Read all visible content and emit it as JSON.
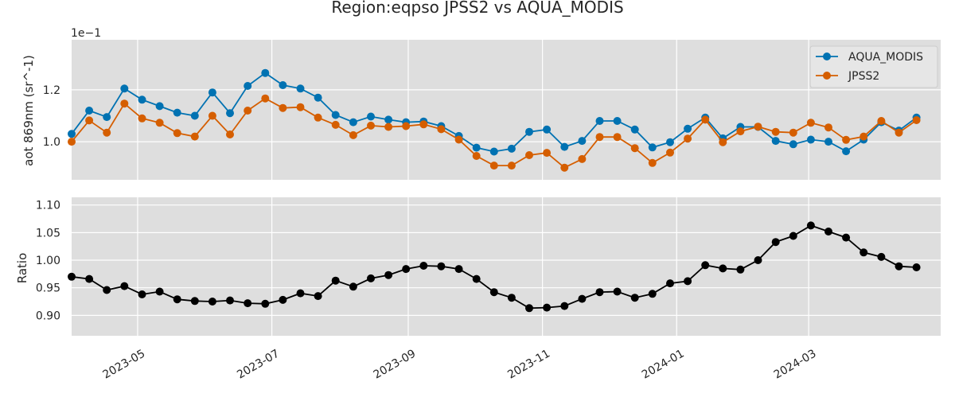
{
  "chart_data": [
    {
      "type": "line",
      "title": "Region:eqpso JPSS2 vs AQUA_MODIS",
      "ylabel": "aot 869nm (sr^-1)",
      "offset_label": "1e−1",
      "xlim": [
        "2023-04-01",
        "2024-04-30"
      ],
      "ylim": [
        0.0853,
        0.1393
      ],
      "yticks": [
        0.1,
        0.12
      ],
      "ytick_labels": [
        "1.0",
        "1.2"
      ],
      "grid": true,
      "legend": "top-right",
      "series": [
        {
          "name": "AQUA_MODIS",
          "color": "#0072B2",
          "points": [
            [
              "2023-04-01",
              0.103
            ],
            [
              "2023-04-09",
              0.112
            ],
            [
              "2023-04-17",
              0.1095
            ],
            [
              "2023-04-25",
              0.1205
            ],
            [
              "2023-05-03",
              0.1162
            ],
            [
              "2023-05-11",
              0.1137
            ],
            [
              "2023-05-19",
              0.1112
            ],
            [
              "2023-05-27",
              0.11
            ],
            [
              "2023-06-04",
              0.119
            ],
            [
              "2023-06-12",
              0.111
            ],
            [
              "2023-06-20",
              0.1215
            ],
            [
              "2023-06-28",
              0.1265
            ],
            [
              "2023-07-06",
              0.1218
            ],
            [
              "2023-07-14",
              0.1205
            ],
            [
              "2023-07-22",
              0.117
            ],
            [
              "2023-07-30",
              0.1103
            ],
            [
              "2023-08-07",
              0.1075
            ],
            [
              "2023-08-15",
              0.1097
            ],
            [
              "2023-08-23",
              0.1085
            ],
            [
              "2023-08-31",
              0.1075
            ],
            [
              "2023-09-08",
              0.1078
            ],
            [
              "2023-09-16",
              0.106
            ],
            [
              "2023-09-24",
              0.1022
            ],
            [
              "2023-10-02",
              0.0977
            ],
            [
              "2023-10-10",
              0.0962
            ],
            [
              "2023-10-18",
              0.0973
            ],
            [
              "2023-10-26",
              0.1038
            ],
            [
              "2023-11-03",
              0.1047
            ],
            [
              "2023-11-11",
              0.098
            ],
            [
              "2023-11-19",
              0.1003
            ],
            [
              "2023-11-27",
              0.108
            ],
            [
              "2023-12-05",
              0.108
            ],
            [
              "2023-12-13",
              0.1047
            ],
            [
              "2023-12-21",
              0.0978
            ],
            [
              "2023-12-29",
              0.0998
            ],
            [
              "2024-01-06",
              0.105
            ],
            [
              "2024-01-14",
              0.1093
            ],
            [
              "2024-01-22",
              0.1013
            ],
            [
              "2024-01-30",
              0.1057
            ],
            [
              "2024-02-07",
              0.1057
            ],
            [
              "2024-02-15",
              0.1003
            ],
            [
              "2024-02-23",
              0.099
            ],
            [
              "2024-03-02",
              0.1008
            ],
            [
              "2024-03-10",
              0.1
            ],
            [
              "2024-03-18",
              0.0963
            ],
            [
              "2024-03-26",
              0.1008
            ],
            [
              "2024-04-03",
              0.1075
            ],
            [
              "2024-04-11",
              0.1043
            ],
            [
              "2024-04-19",
              0.1093
            ]
          ]
        },
        {
          "name": "JPSS2",
          "color": "#D55E00",
          "points": [
            [
              "2023-04-01",
              0.1
            ],
            [
              "2023-04-09",
              0.1082
            ],
            [
              "2023-04-17",
              0.1035
            ],
            [
              "2023-04-25",
              0.1147
            ],
            [
              "2023-05-03",
              0.109
            ],
            [
              "2023-05-11",
              0.1073
            ],
            [
              "2023-05-19",
              0.1033
            ],
            [
              "2023-05-27",
              0.102
            ],
            [
              "2023-06-04",
              0.11
            ],
            [
              "2023-06-12",
              0.1028
            ],
            [
              "2023-06-20",
              0.112
            ],
            [
              "2023-06-28",
              0.1167
            ],
            [
              "2023-07-06",
              0.113
            ],
            [
              "2023-07-14",
              0.1133
            ],
            [
              "2023-07-22",
              0.1093
            ],
            [
              "2023-07-30",
              0.1065
            ],
            [
              "2023-08-07",
              0.1025
            ],
            [
              "2023-08-15",
              0.1062
            ],
            [
              "2023-08-23",
              0.1057
            ],
            [
              "2023-08-31",
              0.106
            ],
            [
              "2023-09-08",
              0.1067
            ],
            [
              "2023-09-16",
              0.1048
            ],
            [
              "2023-09-24",
              0.1008
            ],
            [
              "2023-10-02",
              0.0945
            ],
            [
              "2023-10-10",
              0.0908
            ],
            [
              "2023-10-18",
              0.0908
            ],
            [
              "2023-10-26",
              0.0948
            ],
            [
              "2023-11-03",
              0.0957
            ],
            [
              "2023-11-11",
              0.09
            ],
            [
              "2023-11-19",
              0.0933
            ],
            [
              "2023-11-27",
              0.1018
            ],
            [
              "2023-12-05",
              0.1018
            ],
            [
              "2023-12-13",
              0.0975
            ],
            [
              "2023-12-21",
              0.0918
            ],
            [
              "2023-12-29",
              0.0958
            ],
            [
              "2024-01-06",
              0.1012
            ],
            [
              "2024-01-14",
              0.1085
            ],
            [
              "2024-01-22",
              0.0998
            ],
            [
              "2024-01-30",
              0.104
            ],
            [
              "2024-02-07",
              0.1058
            ],
            [
              "2024-02-15",
              0.1038
            ],
            [
              "2024-02-23",
              0.1035
            ],
            [
              "2024-03-02",
              0.1073
            ],
            [
              "2024-03-10",
              0.1055
            ],
            [
              "2024-03-18",
              0.1007
            ],
            [
              "2024-03-26",
              0.102
            ],
            [
              "2024-04-03",
              0.108
            ],
            [
              "2024-04-11",
              0.1035
            ],
            [
              "2024-04-19",
              0.1083
            ]
          ]
        }
      ]
    },
    {
      "type": "line",
      "ylabel": "Ratio",
      "xlim": [
        "2023-04-01",
        "2024-04-30"
      ],
      "ylim": [
        0.863,
        1.114
      ],
      "yticks": [
        0.9,
        0.95,
        1.0,
        1.05,
        1.1
      ],
      "ytick_labels": [
        "0.90",
        "0.95",
        "1.00",
        "1.05",
        "1.10"
      ],
      "xticks": [
        "2023-05-01",
        "2023-07-01",
        "2023-09-01",
        "2023-11-01",
        "2024-01-01",
        "2024-03-01"
      ],
      "xtick_labels": [
        "2023-05",
        "2023-07",
        "2023-09",
        "2023-11",
        "2024-01",
        "2024-03"
      ],
      "grid": true,
      "series": [
        {
          "color": "#000000",
          "points": [
            [
              "2023-04-01",
              0.97
            ],
            [
              "2023-04-09",
              0.966
            ],
            [
              "2023-04-17",
              0.946
            ],
            [
              "2023-04-25",
              0.953
            ],
            [
              "2023-05-03",
              0.938
            ],
            [
              "2023-05-11",
              0.943
            ],
            [
              "2023-05-19",
              0.929
            ],
            [
              "2023-05-27",
              0.926
            ],
            [
              "2023-06-04",
              0.925
            ],
            [
              "2023-06-12",
              0.927
            ],
            [
              "2023-06-20",
              0.922
            ],
            [
              "2023-06-28",
              0.921
            ],
            [
              "2023-07-06",
              0.928
            ],
            [
              "2023-07-14",
              0.94
            ],
            [
              "2023-07-22",
              0.935
            ],
            [
              "2023-07-30",
              0.963
            ],
            [
              "2023-08-07",
              0.952
            ],
            [
              "2023-08-15",
              0.967
            ],
            [
              "2023-08-23",
              0.973
            ],
            [
              "2023-08-31",
              0.984
            ],
            [
              "2023-09-08",
              0.99
            ],
            [
              "2023-09-16",
              0.989
            ],
            [
              "2023-09-24",
              0.984
            ],
            [
              "2023-10-02",
              0.966
            ],
            [
              "2023-10-10",
              0.942
            ],
            [
              "2023-10-18",
              0.932
            ],
            [
              "2023-10-26",
              0.913
            ],
            [
              "2023-11-03",
              0.914
            ],
            [
              "2023-11-11",
              0.917
            ],
            [
              "2023-11-19",
              0.93
            ],
            [
              "2023-11-27",
              0.942
            ],
            [
              "2023-12-05",
              0.943
            ],
            [
              "2023-12-13",
              0.932
            ],
            [
              "2023-12-21",
              0.939
            ],
            [
              "2023-12-29",
              0.958
            ],
            [
              "2024-01-06",
              0.962
            ],
            [
              "2024-01-14",
              0.991
            ],
            [
              "2024-01-22",
              0.985
            ],
            [
              "2024-01-30",
              0.983
            ],
            [
              "2024-02-07",
              1.0
            ],
            [
              "2024-02-15",
              1.033
            ],
            [
              "2024-02-23",
              1.044
            ],
            [
              "2024-03-02",
              1.063
            ],
            [
              "2024-03-10",
              1.052
            ],
            [
              "2024-03-18",
              1.041
            ],
            [
              "2024-03-26",
              1.014
            ],
            [
              "2024-04-03",
              1.006
            ],
            [
              "2024-04-11",
              0.989
            ],
            [
              "2024-04-19",
              0.987
            ]
          ]
        }
      ]
    }
  ]
}
